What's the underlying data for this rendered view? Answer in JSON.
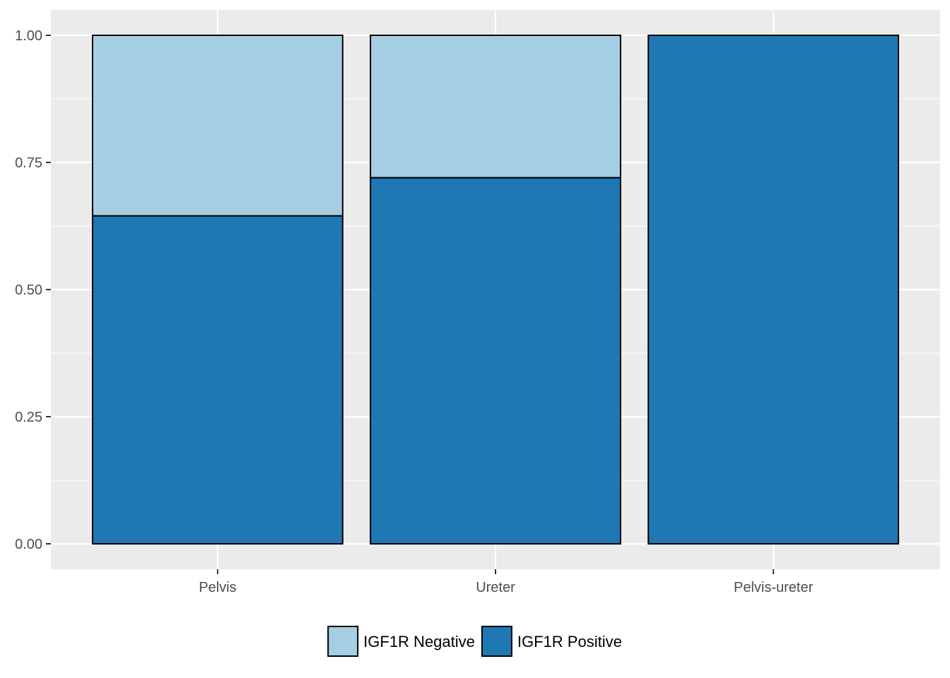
{
  "chart_data": {
    "type": "bar",
    "stacked": true,
    "categories": [
      "Pelvis",
      "Ureter",
      "Pelvis-ureter"
    ],
    "series": [
      {
        "name": "IGF1R Positive",
        "values": [
          0.645,
          0.72,
          1.0
        ],
        "color": "#1f78b4"
      },
      {
        "name": "IGF1R Negative",
        "values": [
          0.355,
          0.28,
          0.0
        ],
        "color": "#a6cee3"
      }
    ],
    "legend_order": [
      "IGF1R Negative",
      "IGF1R Positive"
    ],
    "yticks": [
      "0.00",
      "0.25",
      "0.50",
      "0.75",
      "1.00"
    ],
    "ylim": [
      -0.05,
      1.05
    ],
    "title": "",
    "xlabel": "",
    "ylabel": "",
    "legend_position": "bottom",
    "grid": true,
    "panel_background": "#ebebeb",
    "grid_color": "#ffffff",
    "bar_outline": "#000000"
  }
}
